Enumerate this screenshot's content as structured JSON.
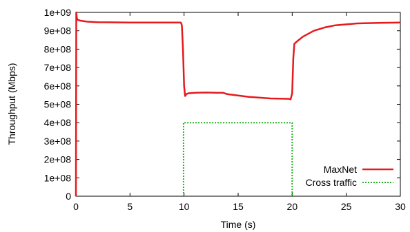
{
  "chart_data": {
    "type": "line",
    "xlabel": "Time (s)",
    "ylabel": "Throughput (Mbps)",
    "xlim": [
      0,
      30
    ],
    "ylim": [
      0,
      1000000000
    ],
    "xticks": [
      0,
      5,
      10,
      15,
      20,
      25,
      30
    ],
    "yticks": [
      0,
      100000000,
      200000000,
      300000000,
      400000000,
      500000000,
      600000000,
      700000000,
      800000000,
      900000000,
      1000000000
    ],
    "ytick_labels": [
      "0",
      "1e+08",
      "2e+08",
      "3e+08",
      "4e+08",
      "5e+08",
      "6e+08",
      "7e+08",
      "8e+08",
      "9e+08",
      "1e+09"
    ],
    "grid": false,
    "legend_position": "bottom-right",
    "series": [
      {
        "name": "MaxNet",
        "color": "#e41a1c",
        "style": "solid",
        "x": [
          0,
          0.03,
          0.08,
          0.15,
          0.4,
          1,
          2,
          3,
          5,
          7,
          9,
          9.7,
          9.8,
          9.9,
          10.0,
          10.1,
          10.2,
          10.4,
          11,
          12,
          13,
          13.6,
          14,
          16,
          18,
          19.5,
          19.7,
          19.85,
          20.0,
          20.1,
          20.2,
          20.5,
          21,
          22,
          23,
          24,
          25,
          26,
          28,
          30
        ],
        "y": [
          0,
          1000000000,
          970000000,
          960000000,
          955000000,
          950000000,
          947000000,
          946000000,
          945000000,
          945000000,
          945000000,
          945000000,
          930000000,
          800000000,
          600000000,
          545000000,
          555000000,
          560000000,
          563000000,
          564000000,
          563000000,
          563000000,
          555000000,
          540000000,
          532000000,
          530000000,
          530000000,
          527000000,
          560000000,
          750000000,
          830000000,
          845000000,
          868000000,
          900000000,
          918000000,
          930000000,
          935000000,
          940000000,
          943000000,
          945000000
        ]
      },
      {
        "name": "Cross traffic",
        "color": "#1fb41f",
        "style": "dotted",
        "x": [
          9.95,
          9.95,
          20.0,
          20.0
        ],
        "y": [
          0,
          400000000,
          400000000,
          0
        ]
      }
    ]
  }
}
